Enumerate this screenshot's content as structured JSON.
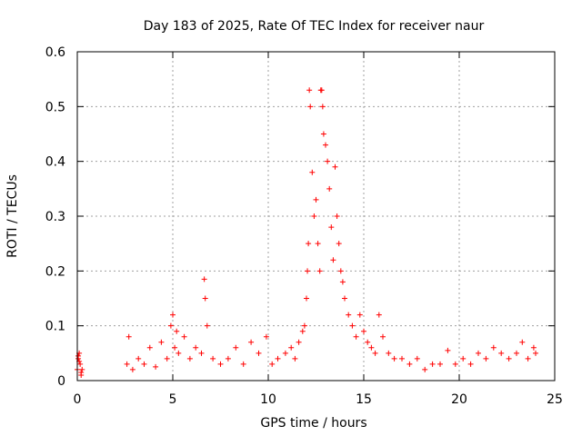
{
  "chart_data": {
    "type": "scatter",
    "title": "Day 183 of 2025, Rate Of TEC Index for receiver naur",
    "xlabel": "GPS time / hours",
    "ylabel": "ROTI / TECUs",
    "xlim": [
      0,
      25
    ],
    "ylim": [
      0,
      0.6
    ],
    "xticks": [
      0,
      5,
      10,
      15,
      20,
      25
    ],
    "yticks": [
      0,
      0.1,
      0.2,
      0.3,
      0.4,
      0.5,
      0.6
    ],
    "ytick_labels": [
      "0",
      "0.1",
      "0.2",
      "0.3",
      "0.4",
      "0.5",
      "0.6"
    ],
    "grid": true,
    "marker": "+",
    "color": "#ff0000",
    "series": [
      {
        "x": [
          0.0,
          0.05,
          0.1,
          0.15,
          0.2,
          0.25,
          0.05,
          0.1,
          0.2,
          2.6,
          2.7,
          2.9,
          3.2,
          3.5,
          3.8,
          4.1,
          4.4,
          4.7,
          4.9,
          5.0,
          5.1,
          5.2,
          5.3,
          5.6,
          5.9,
          6.2,
          6.5,
          6.65,
          6.7,
          6.8,
          7.1,
          7.5,
          7.9,
          8.3,
          8.7,
          9.1,
          9.5,
          9.9,
          10.2,
          10.5,
          10.9,
          11.2,
          11.4,
          11.6,
          11.8,
          11.9,
          12.0,
          12.05,
          12.1,
          12.15,
          12.2,
          12.3,
          12.4,
          12.5,
          12.6,
          12.7,
          12.75,
          12.8,
          12.85,
          12.9,
          13.0,
          13.1,
          13.2,
          13.3,
          13.4,
          13.5,
          13.6,
          13.7,
          13.8,
          13.9,
          14.0,
          14.2,
          14.4,
          14.6,
          14.8,
          15.0,
          15.2,
          15.4,
          15.6,
          15.8,
          16.0,
          16.3,
          16.6,
          17.0,
          17.4,
          17.8,
          18.2,
          18.6,
          19.0,
          19.4,
          19.8,
          20.2,
          20.6,
          21.0,
          21.4,
          21.8,
          22.2,
          22.6,
          23.0,
          23.3,
          23.6,
          23.9,
          24.0
        ],
        "y": [
          0.02,
          0.04,
          0.05,
          0.03,
          0.01,
          0.02,
          0.045,
          0.035,
          0.015,
          0.03,
          0.08,
          0.02,
          0.04,
          0.03,
          0.06,
          0.025,
          0.07,
          0.04,
          0.1,
          0.12,
          0.06,
          0.09,
          0.05,
          0.08,
          0.04,
          0.06,
          0.05,
          0.185,
          0.15,
          0.1,
          0.04,
          0.03,
          0.04,
          0.06,
          0.03,
          0.07,
          0.05,
          0.08,
          0.03,
          0.04,
          0.05,
          0.06,
          0.04,
          0.07,
          0.09,
          0.1,
          0.15,
          0.2,
          0.25,
          0.53,
          0.5,
          0.38,
          0.3,
          0.33,
          0.25,
          0.2,
          0.53,
          0.53,
          0.5,
          0.45,
          0.43,
          0.4,
          0.35,
          0.28,
          0.22,
          0.39,
          0.3,
          0.25,
          0.2,
          0.18,
          0.15,
          0.12,
          0.1,
          0.08,
          0.12,
          0.09,
          0.07,
          0.06,
          0.05,
          0.12,
          0.08,
          0.05,
          0.04,
          0.04,
          0.03,
          0.04,
          0.02,
          0.03,
          0.03,
          0.055,
          0.03,
          0.04,
          0.03,
          0.05,
          0.04,
          0.06,
          0.05,
          0.04,
          0.05,
          0.07,
          0.04,
          0.06,
          0.05
        ]
      }
    ]
  }
}
